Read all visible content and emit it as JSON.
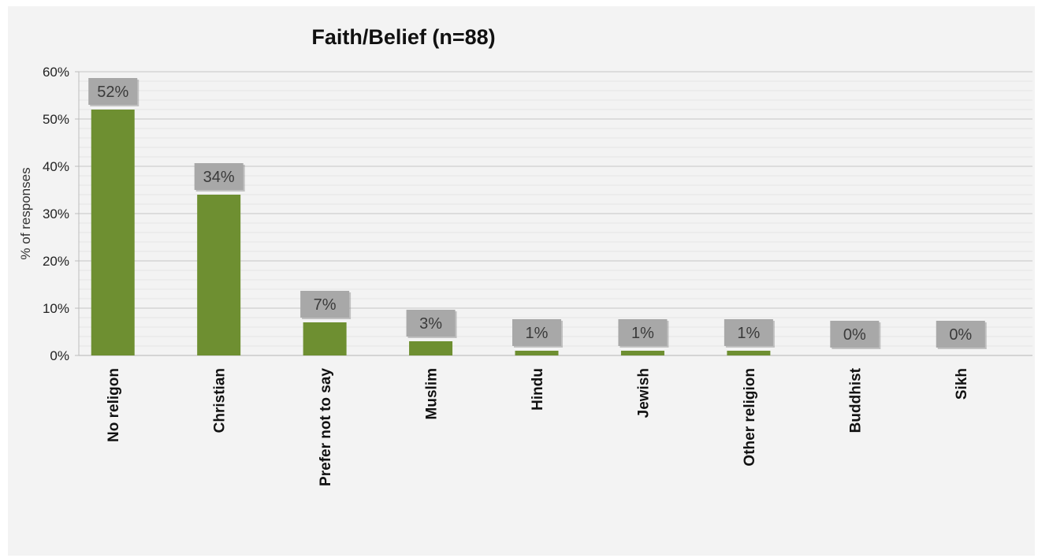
{
  "chart_data": {
    "type": "bar",
    "title": "Faith/Belief (n=88)",
    "xlabel": "",
    "ylabel": "% of responses",
    "ylim": [
      0,
      60
    ],
    "y_ticks": [
      "0%",
      "10%",
      "20%",
      "30%",
      "40%",
      "50%",
      "60%"
    ],
    "y_tick_values": [
      0,
      10,
      20,
      30,
      40,
      50,
      60
    ],
    "categories": [
      "No religon",
      "Christian",
      "Prefer not to say",
      "Muslim",
      "Hindu",
      "Jewish",
      "Other religion",
      "Buddhist",
      "Sikh"
    ],
    "values": [
      52,
      34,
      7,
      3,
      1,
      1,
      1,
      0,
      0
    ],
    "data_labels": [
      "52%",
      "34%",
      "7%",
      "3%",
      "1%",
      "1%",
      "1%",
      "0%",
      "0%"
    ],
    "grid": true,
    "legend": "none",
    "colors": {
      "bar": "#6e8f31",
      "label_box": "#a8a8a8",
      "gridline": "#d9d9d9",
      "panel": "#f3f3f3"
    }
  }
}
